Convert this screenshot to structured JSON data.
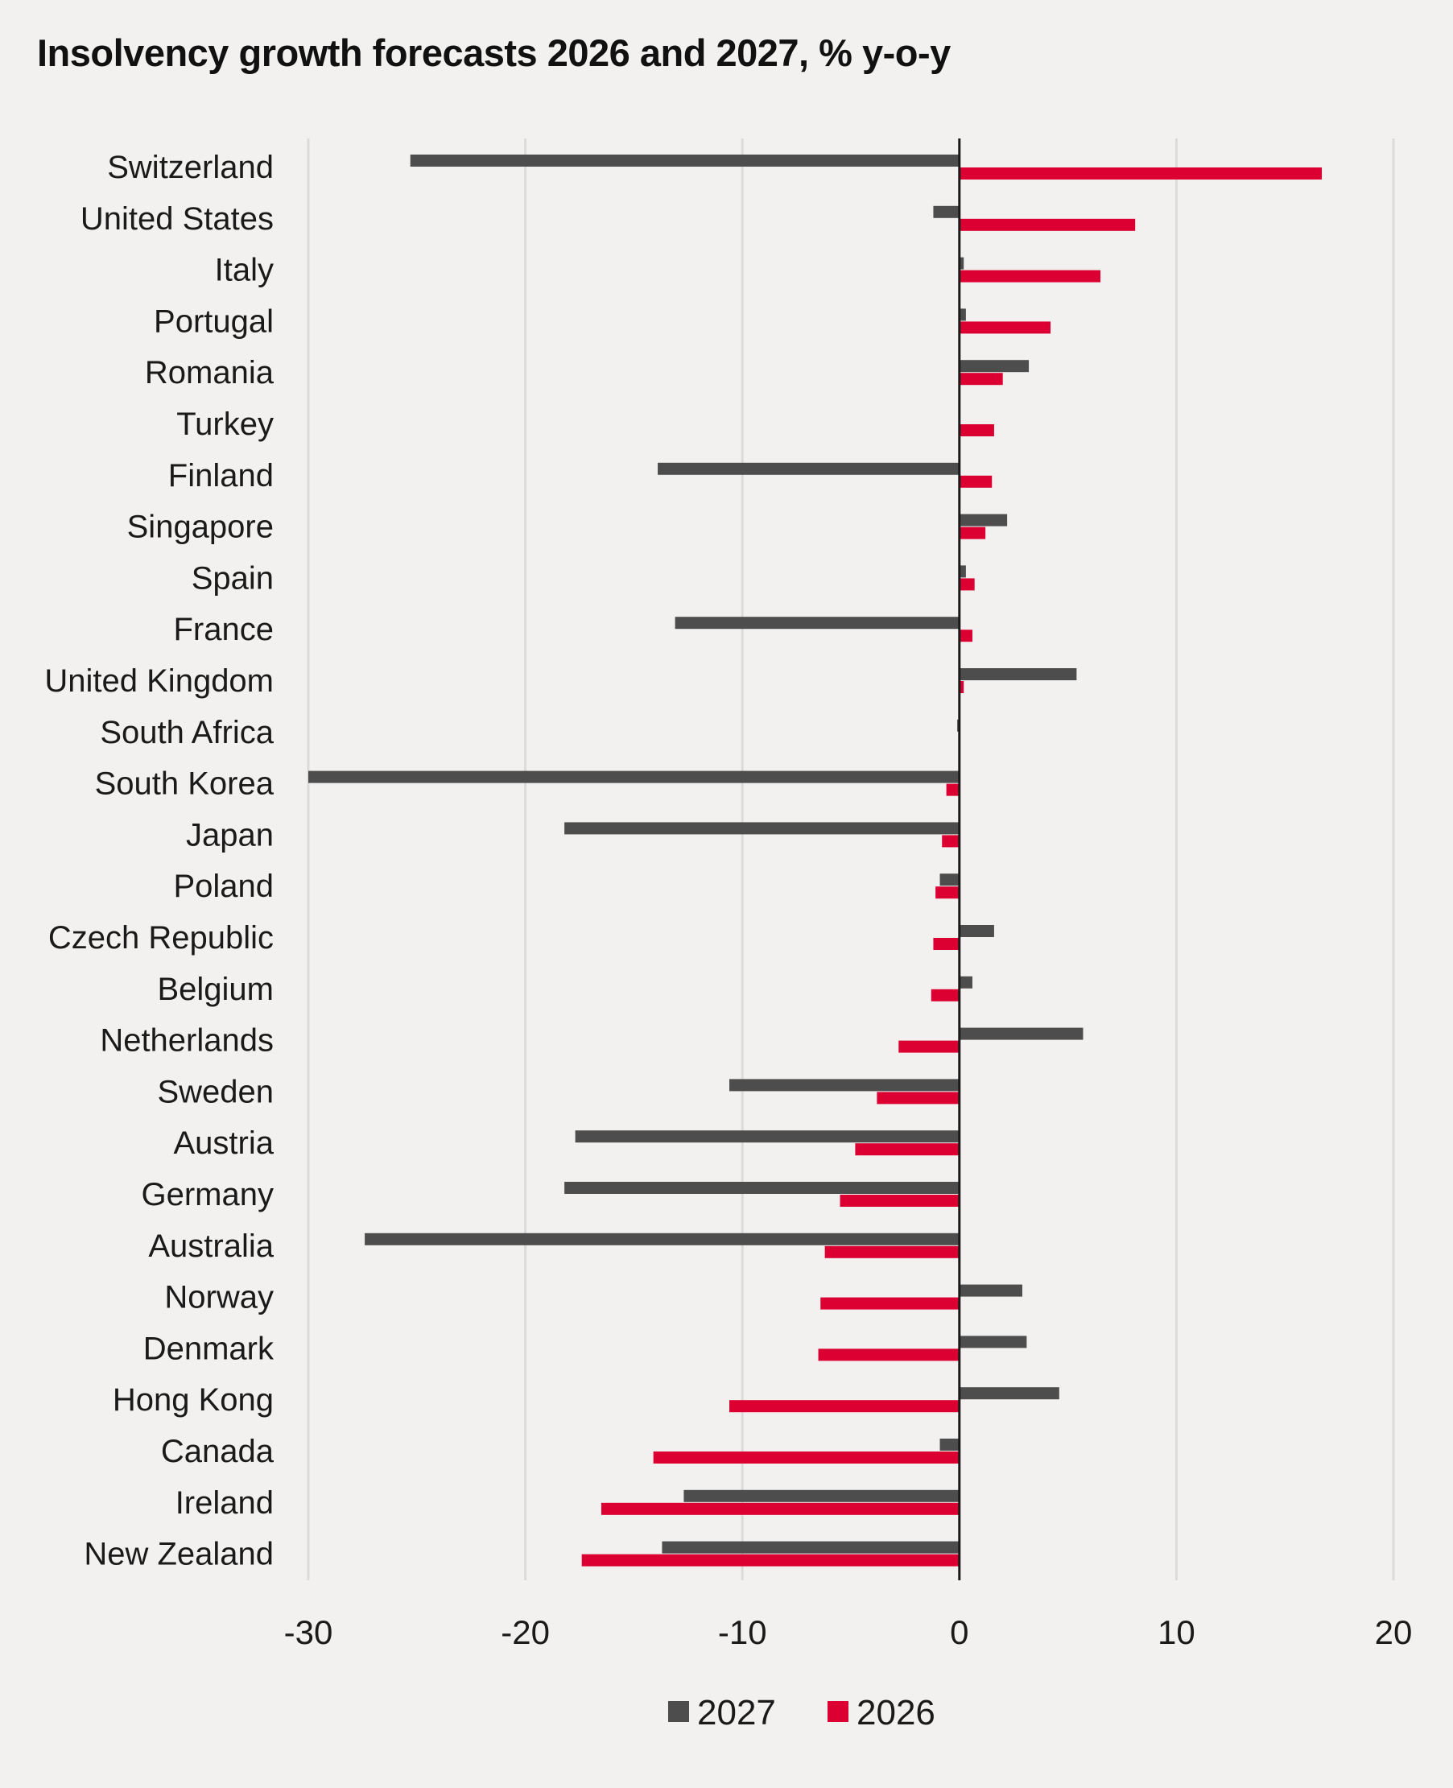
{
  "chart_data": {
    "type": "bar",
    "orientation": "horizontal",
    "title": "Insolvency growth forecasts 2026 and 2027, % y-o-y",
    "xlabel": "",
    "ylabel": "",
    "xlim": [
      -30,
      20
    ],
    "xticks": [
      "-30",
      "-20",
      "-10",
      "0",
      "10",
      "20"
    ],
    "xtick_values": [
      -30,
      -20,
      -10,
      0,
      10,
      20
    ],
    "grid": "vertical",
    "legend_position": "bottom",
    "categories": [
      "Switzerland",
      "United States",
      "Italy",
      "Portugal",
      "Romania",
      "Turkey",
      "Finland",
      "Singapore",
      "Spain",
      "France",
      "United Kingdom",
      "South Africa",
      "South Korea",
      "Japan",
      "Poland",
      "Czech Republic",
      "Belgium",
      "Netherlands",
      "Sweden",
      "Austria",
      "Germany",
      "Australia",
      "Norway",
      "Denmark",
      "Hong Kong",
      "Canada",
      "Ireland",
      "New Zealand"
    ],
    "series": [
      {
        "name": "2027",
        "color": "#4d4d4d",
        "values": [
          -25.3,
          -1.2,
          0.2,
          0.3,
          3.2,
          0,
          -13.9,
          2.2,
          0.3,
          -13.1,
          5.4,
          -0.1,
          -30,
          -18.2,
          -0.9,
          1.6,
          0.6,
          5.7,
          -10.6,
          -17.7,
          -18.2,
          -27.4,
          2.9,
          3.1,
          4.6,
          -0.9,
          -12.7,
          -13.7
        ]
      },
      {
        "name": "2026",
        "color": "#dc0032",
        "values": [
          16.7,
          8.1,
          6.5,
          4.2,
          2.0,
          1.6,
          1.5,
          1.2,
          0.7,
          0.6,
          0.2,
          0,
          -0.6,
          -0.8,
          -1.1,
          -1.2,
          -1.3,
          -2.8,
          -3.8,
          -4.8,
          -5.5,
          -6.2,
          -6.4,
          -6.5,
          -10.6,
          -14.1,
          -16.5,
          -17.4
        ]
      }
    ]
  }
}
